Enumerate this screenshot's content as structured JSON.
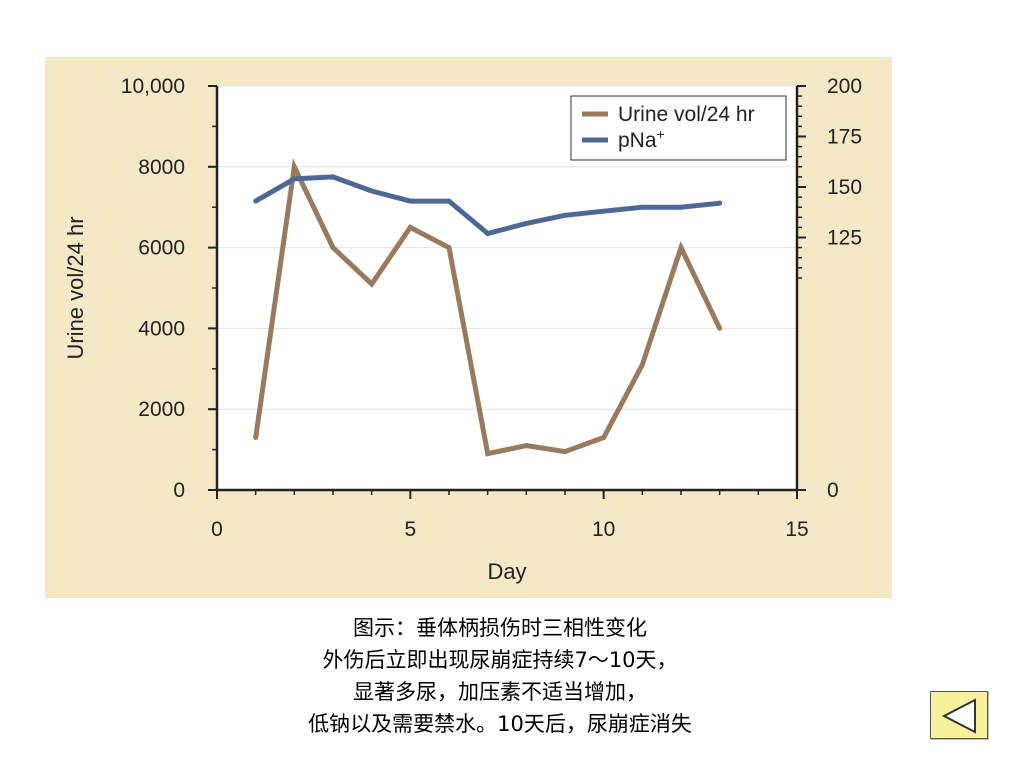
{
  "colors": {
    "panel_bg": "#f5e8c7",
    "plot_bg": "#ffffff",
    "urine": "#9a7a5f",
    "pna": "#4e6895",
    "axis": "#222222",
    "button_bg": "#f7f299"
  },
  "chart_data": {
    "type": "line",
    "xlabel": "Day",
    "ylabel_left": "Urine vol/24 hr",
    "ylabel_right": "",
    "xlim": [
      0,
      15
    ],
    "ylim_left": [
      0,
      10000
    ],
    "ylim_right": [
      0,
      200
    ],
    "x_ticks": [
      "0",
      "5",
      "10",
      "15"
    ],
    "y_left_ticks": [
      "0",
      "2000",
      "4000",
      "6000",
      "8000",
      "10,000"
    ],
    "y_right_ticks": [
      "0",
      "125",
      "150",
      "175",
      "200"
    ],
    "grid": "horizontal",
    "legend_position": "top-right",
    "series": [
      {
        "name": "Urine vol/24 hr",
        "axis": "left",
        "color": "#9a7a5f",
        "points": [
          [
            1,
            1300
          ],
          [
            2,
            8000
          ],
          [
            3,
            6000
          ],
          [
            4,
            5100
          ],
          [
            5,
            6500
          ],
          [
            6,
            6000
          ],
          [
            7,
            900
          ],
          [
            8,
            1100
          ],
          [
            9,
            950
          ],
          [
            10,
            1300
          ],
          [
            11,
            3100
          ],
          [
            12,
            6000
          ],
          [
            13,
            4000
          ]
        ]
      },
      {
        "name": "pNa",
        "name_sup": "+",
        "axis": "right",
        "color": "#4e6895",
        "points": [
          [
            1,
            143
          ],
          [
            2,
            154
          ],
          [
            3,
            155
          ],
          [
            4,
            148
          ],
          [
            5,
            143
          ],
          [
            6,
            143
          ],
          [
            7,
            127
          ],
          [
            8,
            132
          ],
          [
            9,
            136
          ],
          [
            10,
            138
          ],
          [
            11,
            140
          ],
          [
            12,
            140
          ],
          [
            13,
            142
          ]
        ]
      }
    ]
  },
  "caption": {
    "line1": "图示：垂体柄损伤时三相性变化",
    "line2": "外伤后立即出现尿崩症持续7～10天，",
    "line3": "显著多尿，加压素不适当增加，",
    "line4": "低钠以及需要禁水。10天后，尿崩症消失"
  },
  "nav": {
    "back_icon": "left-triangle-icon"
  }
}
